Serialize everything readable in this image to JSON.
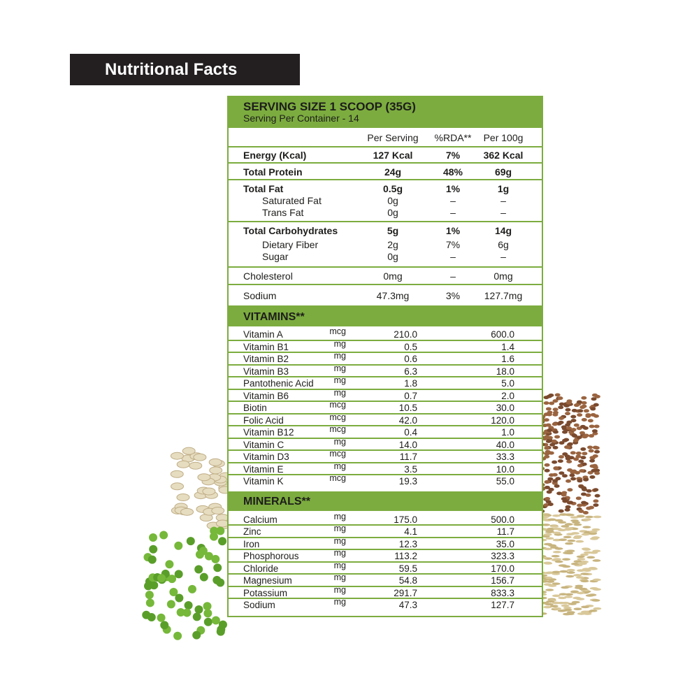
{
  "title": "Nutritional Facts",
  "serving": {
    "title": "SERVING SIZE 1 SCOOP (35G)",
    "subtitle": "Serving Per Container - 14"
  },
  "columns": [
    "Per Serving",
    "%RDA**",
    "Per 100g"
  ],
  "nutrients": [
    {
      "label": "Energy (Kcal)",
      "bold": true,
      "per_serving": "127 Kcal",
      "rda": "7%",
      "per_100g": "362 Kcal"
    },
    {
      "label": "Total Protein",
      "bold": true,
      "per_serving": "24g",
      "rda": "48%",
      "per_100g": "69g"
    },
    {
      "label": "Total Fat",
      "bold": true,
      "per_serving": "0.5g",
      "rda": "1%",
      "per_100g": "1g",
      "sub": [
        {
          "label": "Saturated Fat",
          "per_serving": "0g",
          "rda": "–",
          "per_100g": "–"
        },
        {
          "label": "Trans Fat",
          "per_serving": "0g",
          "rda": "–",
          "per_100g": "–"
        }
      ]
    },
    {
      "label": "Total Carbohydrates",
      "bold": true,
      "per_serving": "5g",
      "rda": "1%",
      "per_100g": "14g",
      "sub": [
        {
          "label": "Dietary Fiber",
          "per_serving": "2g",
          "rda": "7%",
          "per_100g": "6g"
        },
        {
          "label": "Sugar",
          "per_serving": "0g",
          "rda": "–",
          "per_100g": "–"
        }
      ]
    },
    {
      "label": "Cholesterol",
      "bold": false,
      "per_serving": "0mg",
      "rda": "–",
      "per_100g": "0mg"
    },
    {
      "label": "Sodium",
      "bold": false,
      "per_serving": "47.3mg",
      "rda": "3%",
      "per_100g": "127.7mg"
    }
  ],
  "vitamins": {
    "title": "VITAMINS**",
    "rows": [
      [
        "Vitamin A",
        "mcg",
        "210.0",
        "600.0"
      ],
      [
        "Vitamin B1",
        "mg",
        "0.5",
        "1.4"
      ],
      [
        "Vitamin B2",
        "mg",
        "0.6",
        "1.6"
      ],
      [
        "Vitamin B3",
        "mg",
        "6.3",
        "18.0"
      ],
      [
        "Pantothenic Acid",
        "mg",
        "1.8",
        "5.0"
      ],
      [
        "Vitamin B6",
        "mg",
        "0.7",
        "2.0"
      ],
      [
        "Biotin",
        "mcg",
        "10.5",
        "30.0"
      ],
      [
        "Folic Acid",
        "mcg",
        "42.0",
        "120.0"
      ],
      [
        "Vitamin B12",
        "mcg",
        "0.4",
        "1.0"
      ],
      [
        "Vitamin C",
        "mg",
        "14.0",
        "40.0"
      ],
      [
        "Vitamin D3",
        "mcg",
        "11.7",
        "33.3"
      ],
      [
        "Vitamin E",
        "mg",
        "3.5",
        "10.0"
      ],
      [
        "Vitamin K",
        "mcg",
        "19.3",
        "55.0"
      ]
    ]
  },
  "minerals": {
    "title": "MINERALS**",
    "rows": [
      [
        "Calcium",
        "mg",
        "175.0",
        "500.0"
      ],
      [
        "Zinc",
        "mg",
        "4.1",
        "11.7"
      ],
      [
        "Iron",
        "mg",
        "12.3",
        "35.0"
      ],
      [
        "Phosphorous",
        "mg",
        "113.2",
        "323.3"
      ],
      [
        "Chloride",
        "mg",
        "59.5",
        "170.0"
      ],
      [
        "Magnesium",
        "mg",
        "54.8",
        "156.7"
      ],
      [
        "Potassium",
        "mg",
        "291.7",
        "833.3"
      ],
      [
        "Sodium",
        "mg",
        "47.3",
        "127.7"
      ]
    ]
  },
  "colors": {
    "accent": "#7cac3f",
    "title_bar": "#231f20",
    "peas": "#5a9e2a",
    "seeds": "#e6dcc0",
    "flax": "#7a4a2e",
    "rice": "#d9c89a"
  }
}
